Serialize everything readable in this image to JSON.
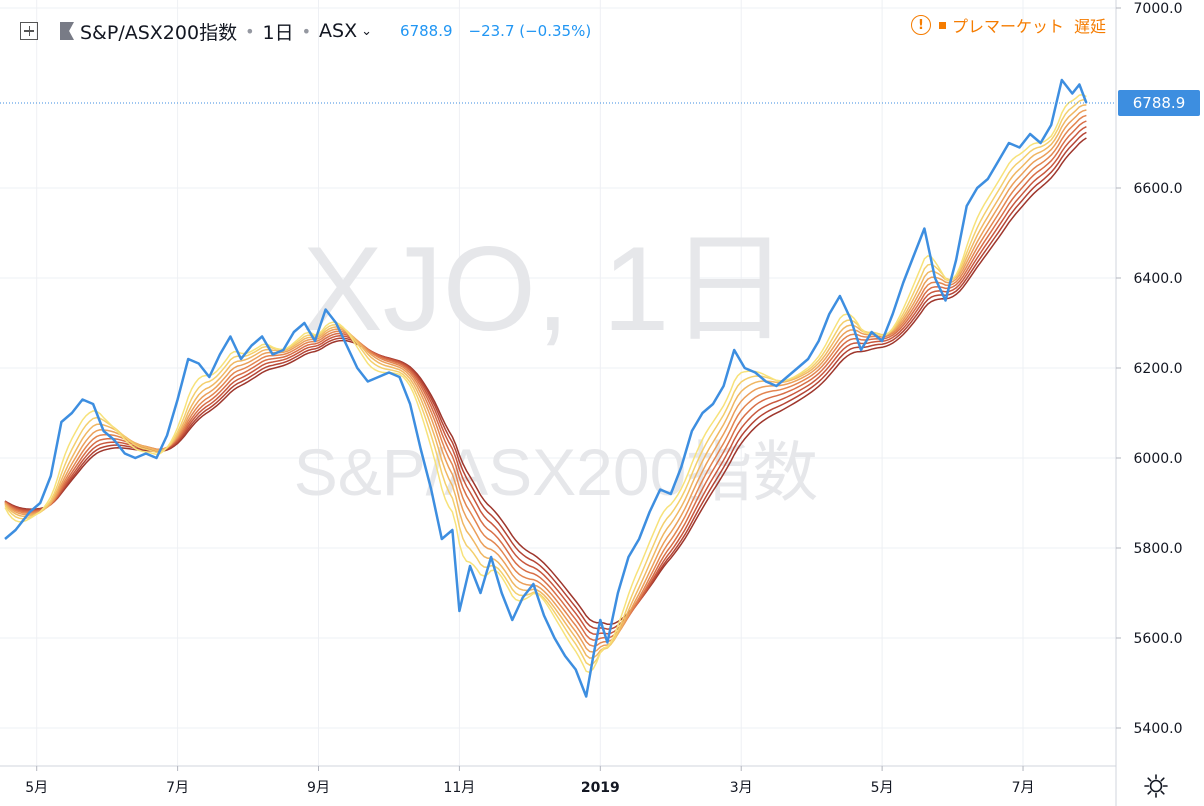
{
  "header": {
    "symbol_title": "S&P/ASX200指数",
    "interval": "1日",
    "exchange": "ASX",
    "last_price": "6788.9",
    "change": "−23.7 (−0.35%)",
    "warning_text": "プレマーケット",
    "delay_text": "遅延",
    "icons": {
      "collapse": "plus-square-icon",
      "flag": "flag-icon",
      "warning": "exclamation-circle-icon",
      "settings": "gear-icon"
    }
  },
  "watermark": {
    "line1": "XJO, 1日",
    "line2": "S&P/ASX200指数"
  },
  "price_label": "6788.9",
  "colors": {
    "price_line": "#3d8ee0",
    "ribbon": [
      "#f7e27a",
      "#f4cf6d",
      "#f0b763",
      "#eb9f5a",
      "#e38550",
      "#d86e47",
      "#c9583e",
      "#b54535",
      "#9e362c"
    ],
    "axis_text": "#131722",
    "grid": "#eef0f4",
    "warning": "#f57c00"
  },
  "chart_data": {
    "type": "line",
    "title": "",
    "ylim": [
      5350,
      7000
    ],
    "y_ticks": [
      "7000.0",
      "6600.0",
      "6400.0",
      "6200.0",
      "6000.0",
      "5800.0",
      "5600.0",
      "5400.0"
    ],
    "x_labels": [
      "5月",
      "7月",
      "9月",
      "11月",
      "2019",
      "3月",
      "5月",
      "7月"
    ],
    "x_label_months": [
      1,
      3,
      5,
      7,
      9,
      11,
      13,
      15
    ],
    "x_start_month": 0.55,
    "x_end_month": 16.05,
    "grid": true,
    "series": [
      {
        "points": [
          [
            0.55,
            5820
          ],
          [
            0.7,
            5840
          ],
          [
            0.9,
            5880
          ],
          [
            1.05,
            5900
          ],
          [
            1.2,
            5960
          ],
          [
            1.35,
            6080
          ],
          [
            1.5,
            6100
          ],
          [
            1.65,
            6130
          ],
          [
            1.8,
            6120
          ],
          [
            1.95,
            6060
          ],
          [
            2.1,
            6040
          ],
          [
            2.25,
            6010
          ],
          [
            2.4,
            6000
          ],
          [
            2.55,
            6010
          ],
          [
            2.7,
            6000
          ],
          [
            2.85,
            6050
          ],
          [
            3.0,
            6130
          ],
          [
            3.15,
            6220
          ],
          [
            3.3,
            6210
          ],
          [
            3.45,
            6180
          ],
          [
            3.6,
            6230
          ],
          [
            3.75,
            6270
          ],
          [
            3.9,
            6220
          ],
          [
            4.05,
            6250
          ],
          [
            4.2,
            6270
          ],
          [
            4.35,
            6230
          ],
          [
            4.5,
            6240
          ],
          [
            4.65,
            6280
          ],
          [
            4.8,
            6300
          ],
          [
            4.95,
            6260
          ],
          [
            5.1,
            6330
          ],
          [
            5.25,
            6300
          ],
          [
            5.4,
            6250
          ],
          [
            5.55,
            6200
          ],
          [
            5.7,
            6170
          ],
          [
            5.85,
            6180
          ],
          [
            6.0,
            6190
          ],
          [
            6.15,
            6180
          ],
          [
            6.3,
            6120
          ],
          [
            6.45,
            6020
          ],
          [
            6.6,
            5930
          ],
          [
            6.75,
            5820
          ],
          [
            6.9,
            5840
          ],
          [
            7.0,
            5660
          ],
          [
            7.15,
            5760
          ],
          [
            7.3,
            5700
          ],
          [
            7.45,
            5780
          ],
          [
            7.6,
            5700
          ],
          [
            7.75,
            5640
          ],
          [
            7.9,
            5690
          ],
          [
            8.05,
            5720
          ],
          [
            8.2,
            5650
          ],
          [
            8.35,
            5600
          ],
          [
            8.5,
            5560
          ],
          [
            8.65,
            5530
          ],
          [
            8.8,
            5470
          ],
          [
            8.9,
            5560
          ],
          [
            9.0,
            5640
          ],
          [
            9.1,
            5590
          ],
          [
            9.25,
            5700
          ],
          [
            9.4,
            5780
          ],
          [
            9.55,
            5820
          ],
          [
            9.7,
            5880
          ],
          [
            9.85,
            5930
          ],
          [
            10.0,
            5920
          ],
          [
            10.15,
            5980
          ],
          [
            10.3,
            6060
          ],
          [
            10.45,
            6100
          ],
          [
            10.6,
            6120
          ],
          [
            10.75,
            6160
          ],
          [
            10.9,
            6240
          ],
          [
            11.05,
            6200
          ],
          [
            11.2,
            6190
          ],
          [
            11.35,
            6170
          ],
          [
            11.5,
            6160
          ],
          [
            11.65,
            6180
          ],
          [
            11.8,
            6200
          ],
          [
            11.95,
            6220
          ],
          [
            12.1,
            6260
          ],
          [
            12.25,
            6320
          ],
          [
            12.4,
            6360
          ],
          [
            12.55,
            6310
          ],
          [
            12.7,
            6240
          ],
          [
            12.85,
            6280
          ],
          [
            13.0,
            6260
          ],
          [
            13.15,
            6320
          ],
          [
            13.3,
            6390
          ],
          [
            13.45,
            6450
          ],
          [
            13.6,
            6510
          ],
          [
            13.75,
            6400
          ],
          [
            13.9,
            6350
          ],
          [
            14.05,
            6440
          ],
          [
            14.2,
            6560
          ],
          [
            14.35,
            6600
          ],
          [
            14.5,
            6620
          ],
          [
            14.65,
            6660
          ],
          [
            14.8,
            6700
          ],
          [
            14.95,
            6690
          ],
          [
            15.1,
            6720
          ],
          [
            15.25,
            6700
          ],
          [
            15.4,
            6740
          ],
          [
            15.55,
            6840
          ],
          [
            15.7,
            6810
          ],
          [
            15.8,
            6830
          ],
          [
            15.9,
            6788.9
          ]
        ]
      }
    ]
  }
}
